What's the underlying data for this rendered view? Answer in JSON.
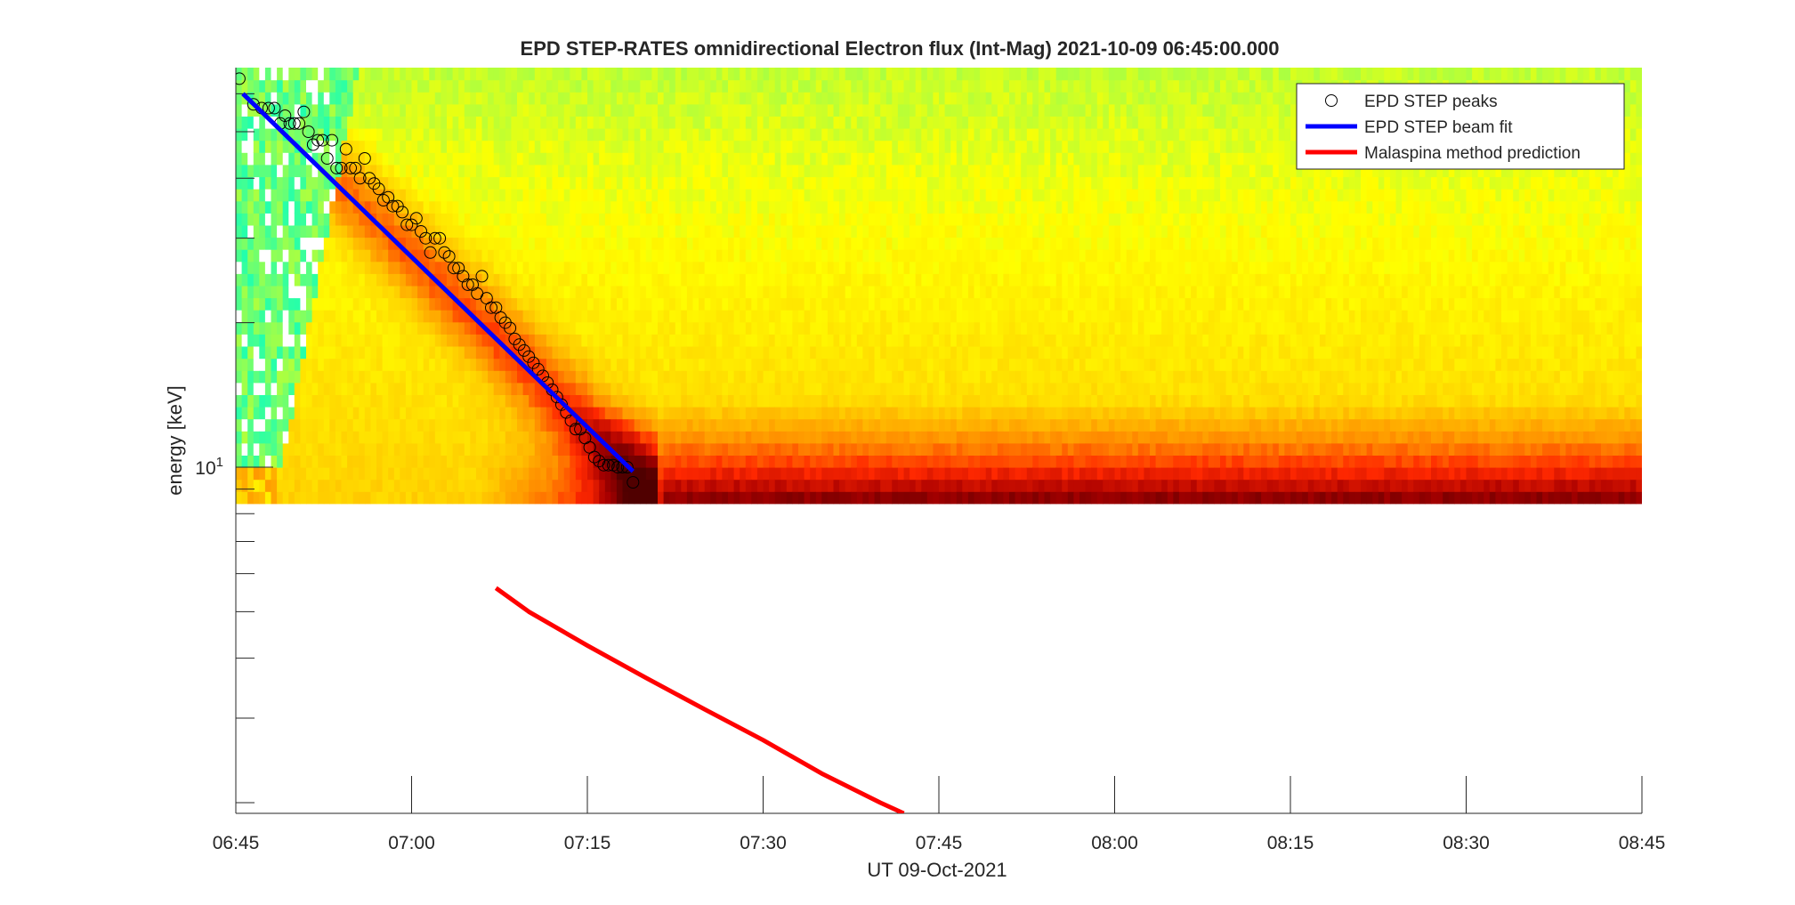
{
  "chart_data": {
    "type": "heatmap",
    "title": "EPD STEP-RATES omnidirectional Electron flux (Int-Mag) 2021-10-09 06:45:00.000",
    "xlabel": "UT 09-Oct-2021",
    "ylabel": "energy [keV]",
    "x_ticks": [
      "06:45",
      "07:00",
      "07:15",
      "07:30",
      "07:45",
      "08:00",
      "08:15",
      "08:30",
      "08:45"
    ],
    "x_range_minutes": [
      0,
      120
    ],
    "y_scale": "log",
    "y_range_keV": [
      1.9,
      68
    ],
    "y_tick_labels": [
      {
        "value": 10,
        "base": "10",
        "exp": "1"
      }
    ],
    "spectrogram_energy_range_keV": [
      8.4,
      68
    ],
    "colormap": [
      "#ffffff",
      "#00ffc8",
      "#7dff64",
      "#ffff00",
      "#ffc800",
      "#ff8c00",
      "#ff2800",
      "#aa0000",
      "#500000"
    ],
    "legend": {
      "position": "top-right",
      "entries": [
        {
          "label": "EPD STEP peaks",
          "marker": "circle",
          "color": "#000000"
        },
        {
          "label": "EPD STEP beam fit",
          "marker": "line",
          "color": "#0000ff"
        },
        {
          "label": "Malaspina method prediction",
          "marker": "line",
          "color": "#ff0000"
        }
      ]
    },
    "series": [
      {
        "name": "EPD STEP beam fit",
        "color": "#0000ff",
        "points": [
          {
            "t": 0.6,
            "e": 60
          },
          {
            "t": 33.9,
            "e": 9.8
          }
        ]
      },
      {
        "name": "Malaspina method prediction",
        "color": "#ff0000",
        "points": [
          {
            "t": 22.2,
            "e": 5.6
          },
          {
            "t": 25.0,
            "e": 5.0
          },
          {
            "t": 30.0,
            "e": 4.25
          },
          {
            "t": 35.0,
            "e": 3.64
          },
          {
            "t": 40.0,
            "e": 3.13
          },
          {
            "t": 45.0,
            "e": 2.7
          },
          {
            "t": 50.0,
            "e": 2.3
          },
          {
            "t": 55.0,
            "e": 2.0
          },
          {
            "t": 57.0,
            "e": 1.9
          }
        ]
      },
      {
        "name": "EPD STEP peaks",
        "color": "#000000",
        "points": [
          {
            "t": 0.3,
            "e": 64.5
          },
          {
            "t": 1.5,
            "e": 57
          },
          {
            "t": 2.2,
            "e": 56
          },
          {
            "t": 2.8,
            "e": 56
          },
          {
            "t": 3.3,
            "e": 56
          },
          {
            "t": 3.8,
            "e": 52
          },
          {
            "t": 4.2,
            "e": 54
          },
          {
            "t": 4.6,
            "e": 52
          },
          {
            "t": 5.0,
            "e": 52
          },
          {
            "t": 5.4,
            "e": 52
          },
          {
            "t": 5.8,
            "e": 55
          },
          {
            "t": 6.2,
            "e": 50
          },
          {
            "t": 6.6,
            "e": 47
          },
          {
            "t": 7.0,
            "e": 48
          },
          {
            "t": 7.4,
            "e": 48
          },
          {
            "t": 7.8,
            "e": 44
          },
          {
            "t": 8.2,
            "e": 48
          },
          {
            "t": 8.6,
            "e": 42
          },
          {
            "t": 9.0,
            "e": 42
          },
          {
            "t": 9.4,
            "e": 46
          },
          {
            "t": 9.8,
            "e": 42
          },
          {
            "t": 10.2,
            "e": 42
          },
          {
            "t": 10.6,
            "e": 40
          },
          {
            "t": 11.0,
            "e": 44
          },
          {
            "t": 11.4,
            "e": 40
          },
          {
            "t": 11.8,
            "e": 39
          },
          {
            "t": 12.2,
            "e": 38
          },
          {
            "t": 12.6,
            "e": 36
          },
          {
            "t": 13.0,
            "e": 36.5
          },
          {
            "t": 13.4,
            "e": 35
          },
          {
            "t": 13.8,
            "e": 35
          },
          {
            "t": 14.2,
            "e": 34
          },
          {
            "t": 14.6,
            "e": 32
          },
          {
            "t": 15.0,
            "e": 32
          },
          {
            "t": 15.4,
            "e": 33
          },
          {
            "t": 15.8,
            "e": 31
          },
          {
            "t": 16.2,
            "e": 30
          },
          {
            "t": 16.6,
            "e": 28
          },
          {
            "t": 17.0,
            "e": 30
          },
          {
            "t": 17.4,
            "e": 30
          },
          {
            "t": 17.8,
            "e": 28
          },
          {
            "t": 18.2,
            "e": 27.5
          },
          {
            "t": 18.6,
            "e": 26
          },
          {
            "t": 19.0,
            "e": 26
          },
          {
            "t": 19.4,
            "e": 25
          },
          {
            "t": 19.8,
            "e": 24
          },
          {
            "t": 20.2,
            "e": 24
          },
          {
            "t": 20.6,
            "e": 23
          },
          {
            "t": 21.0,
            "e": 25
          },
          {
            "t": 21.4,
            "e": 22.5
          },
          {
            "t": 21.8,
            "e": 21.5
          },
          {
            "t": 22.2,
            "e": 21.5
          },
          {
            "t": 22.6,
            "e": 20.5
          },
          {
            "t": 23.0,
            "e": 20
          },
          {
            "t": 23.4,
            "e": 19.5
          },
          {
            "t": 23.8,
            "e": 18.5
          },
          {
            "t": 24.2,
            "e": 18
          },
          {
            "t": 24.6,
            "e": 17.5
          },
          {
            "t": 25.0,
            "e": 17
          },
          {
            "t": 25.4,
            "e": 16.5
          },
          {
            "t": 25.8,
            "e": 16
          },
          {
            "t": 26.2,
            "e": 15.5
          },
          {
            "t": 26.6,
            "e": 15
          },
          {
            "t": 27.0,
            "e": 14.5
          },
          {
            "t": 27.4,
            "e": 14
          },
          {
            "t": 27.8,
            "e": 13.5
          },
          {
            "t": 28.2,
            "e": 13
          },
          {
            "t": 28.6,
            "e": 12.5
          },
          {
            "t": 29.0,
            "e": 12
          },
          {
            "t": 29.4,
            "e": 12
          },
          {
            "t": 29.8,
            "e": 11.5
          },
          {
            "t": 30.2,
            "e": 11
          },
          {
            "t": 30.6,
            "e": 10.5
          },
          {
            "t": 31.0,
            "e": 10.3
          },
          {
            "t": 31.4,
            "e": 10.1
          },
          {
            "t": 31.8,
            "e": 10.1
          },
          {
            "t": 32.2,
            "e": 10.1
          },
          {
            "t": 32.6,
            "e": 10.0
          },
          {
            "t": 33.0,
            "e": 10.0
          },
          {
            "t": 33.4,
            "e": 10.0
          },
          {
            "t": 33.9,
            "e": 9.3
          }
        ]
      }
    ]
  }
}
